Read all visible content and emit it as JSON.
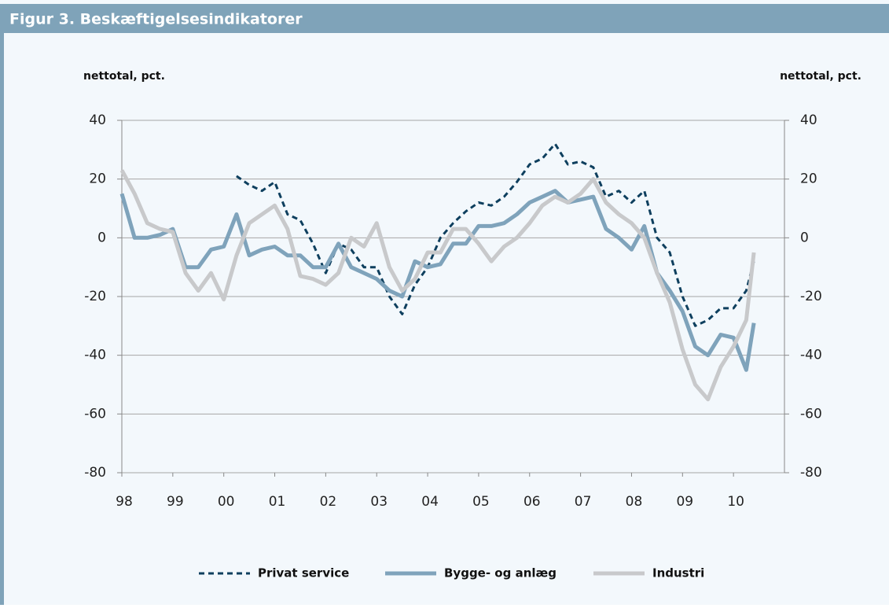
{
  "chart_data": {
    "type": "line",
    "title": "Figur 3. Beskæftigelsesindikatorer",
    "y_label": "nettotal, pct.",
    "y2_label": "nettotal, pct.",
    "x": [
      1998,
      1998.25,
      1998.5,
      1998.75,
      1999,
      1999.25,
      1999.5,
      1999.75,
      2000,
      2000.25,
      2000.5,
      2000.75,
      2001,
      2001.25,
      2001.5,
      2001.75,
      2002,
      2002.25,
      2002.5,
      2002.75,
      2003,
      2003.25,
      2003.5,
      2003.75,
      2004,
      2004.25,
      2004.5,
      2004.75,
      2005,
      2005.25,
      2005.5,
      2005.75,
      2006,
      2006.25,
      2006.5,
      2006.75,
      2007,
      2007.25,
      2007.5,
      2007.75,
      2008,
      2008.25,
      2008.5,
      2008.75,
      2009,
      2009.25,
      2009.5,
      2009.75,
      2010,
      2010.25,
      2010.4
    ],
    "series": [
      {
        "name": "Privat service",
        "color": "#0e3f5e",
        "dash": true,
        "values": [
          null,
          null,
          null,
          null,
          null,
          null,
          null,
          null,
          null,
          21,
          18,
          16,
          19,
          8,
          6,
          -2,
          -12,
          -2,
          -4,
          -10,
          -10,
          -20,
          -26,
          -16,
          -10,
          0,
          5,
          9,
          12,
          11,
          14,
          19,
          25,
          27,
          32,
          25,
          26,
          24,
          14,
          16,
          12,
          16,
          0,
          -5,
          -20,
          -30,
          -28,
          -24,
          -24,
          -18,
          -8
        ]
      },
      {
        "name": "Bygge- og anlæg",
        "color": "#7fa3bb",
        "dash": false,
        "values": [
          15,
          0,
          0,
          1,
          3,
          -10,
          -10,
          -4,
          -3,
          8,
          -6,
          -4,
          -3,
          -6,
          -6,
          -10,
          -10,
          -2,
          -10,
          -12,
          -14,
          -18,
          -20,
          -8,
          -10,
          -9,
          -2,
          -2,
          4,
          4,
          5,
          8,
          12,
          14,
          16,
          12,
          13,
          14,
          3,
          0,
          -4,
          4,
          -12,
          -18,
          -25,
          -37,
          -40,
          -33,
          -34,
          -45,
          -29
        ]
      },
      {
        "name": "Industri",
        "color": "#c8c9cb",
        "dash": false,
        "values": [
          23,
          15,
          5,
          3,
          2,
          -12,
          -18,
          -12,
          -21,
          -6,
          5,
          8,
          11,
          3,
          -13,
          -14,
          -16,
          -12,
          0,
          -3,
          5,
          -10,
          -18,
          -14,
          -5,
          -5,
          3,
          3,
          -2,
          -8,
          -3,
          0,
          5,
          11,
          14,
          12,
          15,
          20,
          12,
          8,
          5,
          0,
          -12,
          -22,
          -38,
          -50,
          -55,
          -44,
          -37,
          -28,
          -5
        ]
      }
    ],
    "xlim": [
      1998,
      2011
    ],
    "xticks": [
      {
        "value": 1998,
        "label": "98"
      },
      {
        "value": 1999,
        "label": "99"
      },
      {
        "value": 2000,
        "label": "00"
      },
      {
        "value": 2001,
        "label": "01"
      },
      {
        "value": 2002,
        "label": "02"
      },
      {
        "value": 2003,
        "label": "03"
      },
      {
        "value": 2004,
        "label": "04"
      },
      {
        "value": 2005,
        "label": "05"
      },
      {
        "value": 2006,
        "label": "06"
      },
      {
        "value": 2007,
        "label": "07"
      },
      {
        "value": 2008,
        "label": "08"
      },
      {
        "value": 2009,
        "label": "09"
      },
      {
        "value": 2010,
        "label": "10"
      }
    ],
    "ylim": [
      -80,
      40
    ],
    "yticks": [
      -80,
      -60,
      -40,
      -20,
      0,
      20,
      40
    ],
    "y2lim": [
      -80,
      40
    ],
    "y2ticks": [
      -80,
      -60,
      -40,
      -20,
      0,
      20,
      40
    ],
    "grid": true,
    "legend": "bottom"
  }
}
